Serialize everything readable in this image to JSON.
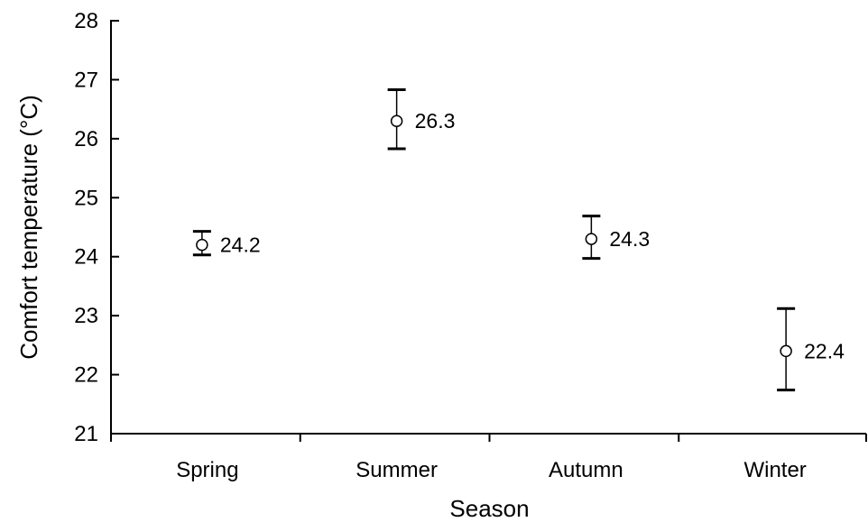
{
  "chart_data": {
    "type": "scatter",
    "title": "",
    "xlabel": "Season",
    "ylabel": "Comfort temperature (°C)",
    "ylim": [
      21,
      28
    ],
    "yticks": [
      21,
      22,
      23,
      24,
      25,
      26,
      27,
      28
    ],
    "categories": [
      "Spring",
      "Summer",
      "Autumn",
      "Winter"
    ],
    "values": [
      24.2,
      26.3,
      24.3,
      22.4
    ],
    "error_low": [
      24.03,
      25.83,
      23.97,
      21.74
    ],
    "error_high": [
      24.43,
      26.83,
      24.69,
      23.12
    ],
    "data_labels": [
      "24.2",
      "26.3",
      "24.3",
      "22.4"
    ],
    "grid": false,
    "legend": "none"
  }
}
